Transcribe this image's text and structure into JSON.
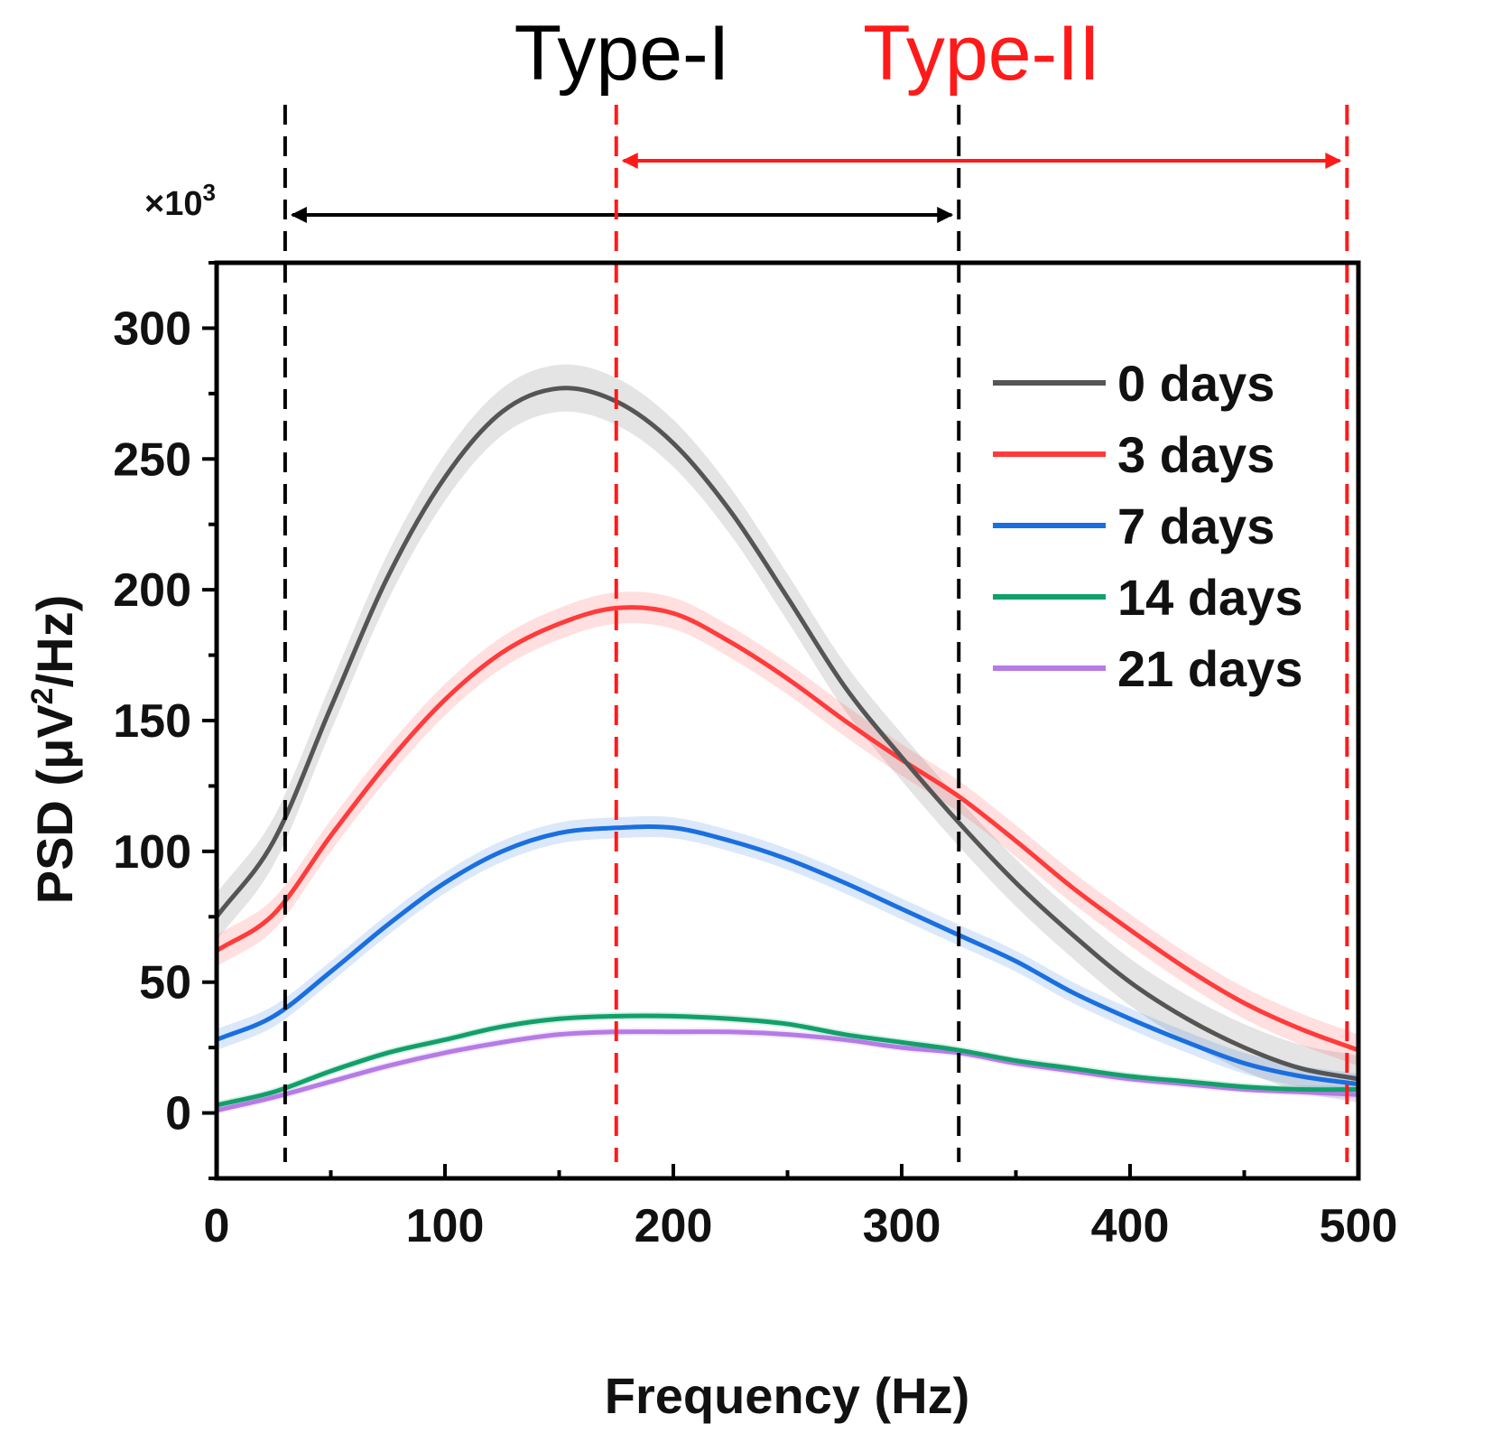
{
  "chart_data": {
    "type": "line",
    "xlabel": "Frequency (Hz)",
    "ylabel_prefix": "PSD (μV",
    "ylabel_sup": "2",
    "ylabel_suffix": "/Hz)",
    "y_multiplier_prefix": "×10",
    "y_multiplier_sup": "3",
    "xlim": [
      0,
      500
    ],
    "ylim": [
      -25,
      325
    ],
    "x_ticks": [
      0,
      100,
      200,
      300,
      400,
      500
    ],
    "y_ticks": [
      0,
      50,
      100,
      150,
      200,
      250,
      300
    ],
    "x_tick_labels": [
      "0",
      "100",
      "200",
      "300",
      "400",
      "500"
    ],
    "y_tick_labels": [
      "0",
      "50",
      "100",
      "150",
      "200",
      "250",
      "300"
    ],
    "legend_position": "top-right",
    "regions": [
      {
        "name": "Type-I",
        "start": 30,
        "end": 325,
        "color": "#000000"
      },
      {
        "name": "Type-II",
        "start": 175,
        "end": 495,
        "color": "#ff1a1a"
      }
    ],
    "x": [
      0,
      25,
      50,
      75,
      100,
      125,
      150,
      175,
      200,
      225,
      250,
      275,
      300,
      325,
      350,
      375,
      400,
      425,
      450,
      475,
      500
    ],
    "series": [
      {
        "name": "0 days",
        "color": "#555555",
        "band": 9,
        "values": [
          75,
          104,
          155,
          205,
          243,
          268,
          277,
          272,
          256,
          230,
          197,
          163,
          136,
          111,
          88,
          68,
          50,
          36,
          25,
          17,
          13
        ]
      },
      {
        "name": "3 days",
        "color": "#ff3b3b",
        "band": 6,
        "values": [
          62,
          76,
          106,
          134,
          158,
          176,
          187,
          193,
          191,
          180,
          166,
          150,
          135,
          121,
          104,
          86,
          70,
          55,
          42,
          32,
          24
        ]
      },
      {
        "name": "7 days",
        "color": "#1a6fe0",
        "band": 4,
        "values": [
          28,
          37,
          54,
          72,
          88,
          100,
          107,
          109,
          109,
          104,
          97,
          88,
          78,
          68,
          58,
          46,
          36,
          27,
          19,
          14,
          11
        ]
      },
      {
        "name": "14 days",
        "color": "#12a06a",
        "band": 1.5,
        "values": [
          3,
          8,
          16,
          23,
          28,
          33,
          36,
          37,
          37,
          36,
          34,
          30,
          27,
          24,
          20,
          17,
          14,
          12,
          10,
          9,
          9
        ]
      },
      {
        "name": "21 days",
        "color": "#b57be6",
        "band": 1.5,
        "values": [
          1,
          6,
          12,
          18,
          23,
          27,
          30,
          31,
          31,
          31,
          30,
          28,
          25,
          23,
          19,
          16,
          13,
          11,
          9,
          8,
          7
        ]
      }
    ]
  }
}
